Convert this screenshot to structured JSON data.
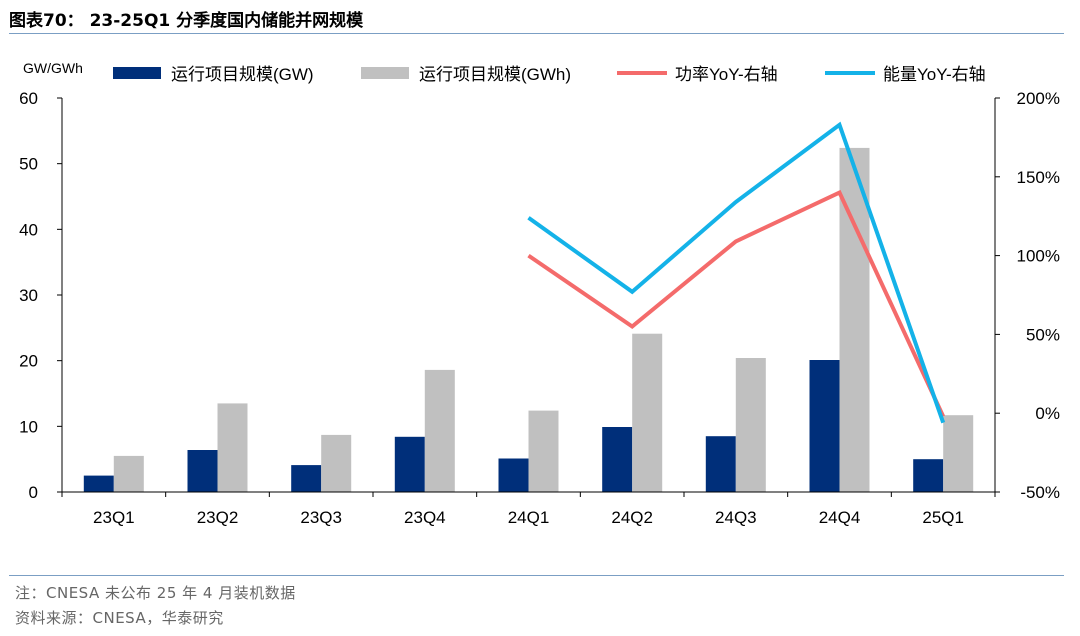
{
  "title": "图表70： 23-25Q1 分季度国内储能并网规模",
  "notes": {
    "note": "注：CNESA 未公布 25 年 4 月装机数据",
    "source": "资料来源：CNESA，华泰研究"
  },
  "colors": {
    "bar_gw": "#002f7a",
    "bar_gwh": "#c0c0c0",
    "line_power": "#f46b6b",
    "line_energy": "#14b2e8",
    "rule": "#7b9fc4"
  },
  "chart_data": {
    "type": "bar",
    "categories": [
      "23Q1",
      "23Q2",
      "23Q3",
      "23Q4",
      "24Q1",
      "24Q2",
      "24Q3",
      "24Q4",
      "25Q1"
    ],
    "y_unit_label": "GW/GWh",
    "ylim": [
      0,
      60
    ],
    "yticks": [
      0,
      10,
      20,
      30,
      40,
      50,
      60
    ],
    "y2lim": [
      -50,
      200
    ],
    "y2ticks": [
      "-50%",
      "0%",
      "50%",
      "100%",
      "150%",
      "200%"
    ],
    "y2tick_values": [
      -50,
      0,
      50,
      100,
      150,
      200
    ],
    "legend_position": "top",
    "grid": false,
    "series": [
      {
        "name": "运行项目规模(GW)",
        "kind": "bar",
        "axis": "left",
        "values": [
          2.5,
          6.4,
          4.1,
          8.4,
          5.1,
          9.9,
          8.5,
          20.1,
          5.0
        ]
      },
      {
        "name": "运行项目规模(GWh)",
        "kind": "bar",
        "axis": "left",
        "values": [
          5.5,
          13.5,
          8.7,
          18.6,
          12.4,
          24.1,
          20.4,
          52.4,
          11.7
        ]
      },
      {
        "name": "功率YoY-右轴",
        "kind": "line",
        "axis": "right",
        "values": [
          null,
          null,
          null,
          null,
          100,
          55,
          109,
          140,
          -2
        ]
      },
      {
        "name": "能量YoY-右轴",
        "kind": "line",
        "axis": "right",
        "values": [
          null,
          null,
          null,
          null,
          124,
          77,
          134,
          183,
          -6
        ]
      }
    ]
  }
}
